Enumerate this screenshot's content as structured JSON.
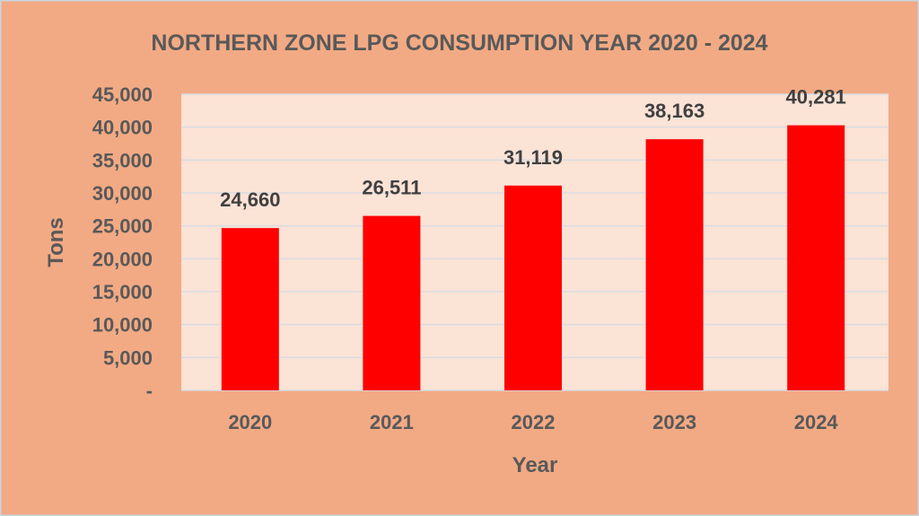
{
  "colors": {
    "background": "#F2AA84",
    "plot_background": "#FBE3D6",
    "bar": "#FF0000",
    "gridline": "#D9DCE2",
    "text": "#595959",
    "label_text": "#404040",
    "border": "#C9D4E0"
  },
  "chart_data": {
    "type": "bar",
    "title": "NORTHERN ZONE LPG CONSUMPTION YEAR 2020 - 2024",
    "xlabel": "Year",
    "ylabel": "Tons",
    "categories": [
      "2020",
      "2021",
      "2022",
      "2023",
      "2024"
    ],
    "values": [
      24660,
      26511,
      31119,
      38163,
      40281
    ],
    "data_labels": [
      "24,660",
      "26,511",
      "31,119",
      "38,163",
      "40,281"
    ],
    "ylim": [
      0,
      45000
    ],
    "yticks": [
      0,
      5000,
      10000,
      15000,
      20000,
      25000,
      30000,
      35000,
      40000,
      45000
    ],
    "ytick_labels": [
      "-",
      "5,000",
      "10,000",
      "15,000",
      "20,000",
      "25,000",
      "30,000",
      "35,000",
      "40,000",
      "45,000"
    ],
    "grid": true,
    "legend": "none"
  }
}
